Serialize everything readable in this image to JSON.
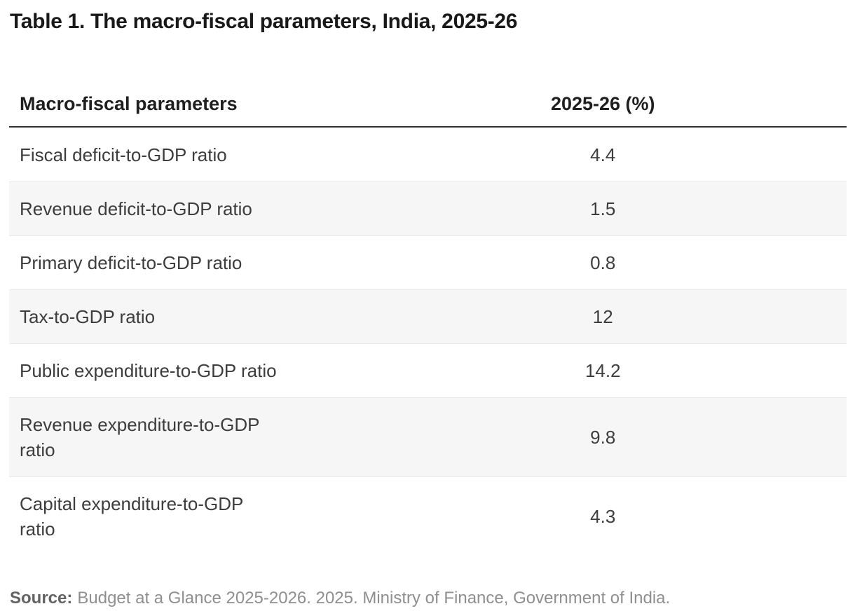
{
  "page": {
    "title": "Table 1. The macro-fiscal parameters, India, 2025-26"
  },
  "table": {
    "columns": [
      "Macro-fiscal parameters",
      "2025-26 (%)"
    ],
    "rows": [
      {
        "parameter": "Fiscal deficit-to-GDP ratio",
        "value": "4.4"
      },
      {
        "parameter": "Revenue deficit-to-GDP ratio",
        "value": "1.5"
      },
      {
        "parameter": "Primary deficit-to-GDP ratio",
        "value": "0.8"
      },
      {
        "parameter": "Tax-to-GDP ratio",
        "value": "12"
      },
      {
        "parameter": "Public expenditure-to-GDP ratio",
        "value": "14.2"
      },
      {
        "parameter": "Revenue expenditure-to-GDP\nratio",
        "value": "9.8"
      },
      {
        "parameter": "Capital expenditure-to-GDP\nratio",
        "value": "4.3"
      }
    ]
  },
  "source": {
    "label": "Source:",
    "text": "Budget at a Glance 2025-2026. 2025. Ministry of Finance, Government of India."
  },
  "chart_data": {
    "type": "table",
    "title": "Table 1. The macro-fiscal parameters, India, 2025-26",
    "columns": [
      "Macro-fiscal parameters",
      "2025-26 (%)"
    ],
    "rows": [
      [
        "Fiscal deficit-to-GDP ratio",
        4.4
      ],
      [
        "Revenue deficit-to-GDP ratio",
        1.5
      ],
      [
        "Primary deficit-to-GDP ratio",
        0.8
      ],
      [
        "Tax-to-GDP ratio",
        12
      ],
      [
        "Public expenditure-to-GDP ratio",
        14.2
      ],
      [
        "Revenue expenditure-to-GDP ratio",
        9.8
      ],
      [
        "Capital expenditure-to-GDP ratio",
        4.3
      ]
    ],
    "source": "Budget at a Glance 2025-2026. 2025. Ministry of Finance, Government of India.",
    "layout": {
      "zebra_stripes": true,
      "value_alignment": "center",
      "stripe_color": "#f6f6f6",
      "header_rule_color": "#2e2e2e"
    }
  },
  "colors": {
    "background": "#ffffff",
    "title_text": "#191919",
    "header_text": "#1f1f1f",
    "body_text": "#3d3d3d",
    "stripe_row": "#f6f6f6",
    "row_divider": "#e9e9e9",
    "header_rule": "#2e2e2e",
    "source_label": "#636363",
    "source_text": "#8f8f8f"
  }
}
